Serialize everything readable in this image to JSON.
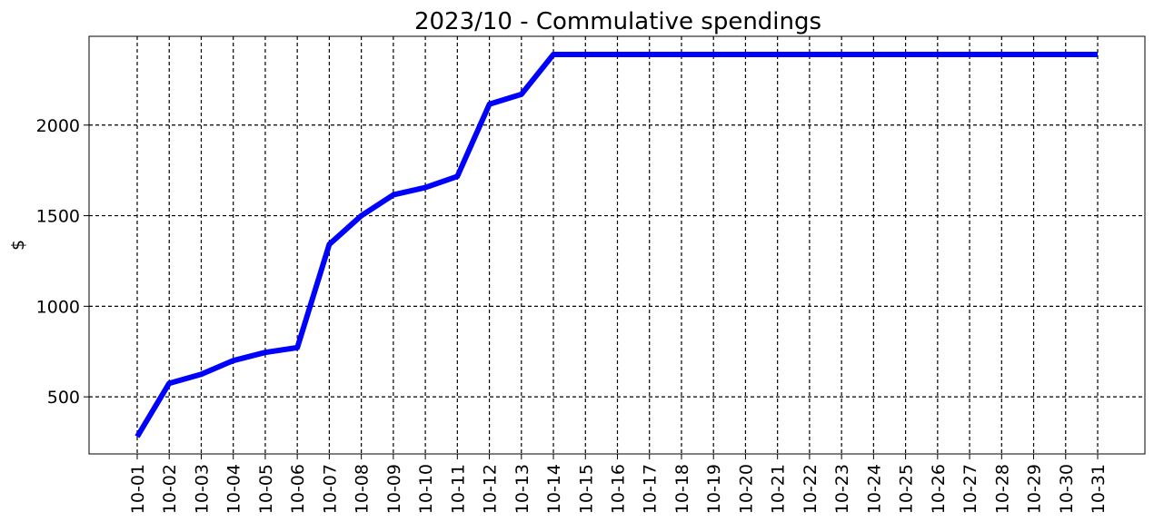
{
  "chart_data": {
    "type": "line",
    "title": "2023/10 - Commulative spendings",
    "xlabel": "",
    "ylabel": "$",
    "categories": [
      "10-01",
      "10-02",
      "10-03",
      "10-04",
      "10-05",
      "10-06",
      "10-07",
      "10-08",
      "10-09",
      "10-10",
      "10-11",
      "10-12",
      "10-13",
      "10-14",
      "10-15",
      "10-16",
      "10-17",
      "10-18",
      "10-19",
      "10-20",
      "10-21",
      "10-22",
      "10-23",
      "10-24",
      "10-25",
      "10-26",
      "10-27",
      "10-28",
      "10-29",
      "10-30",
      "10-31"
    ],
    "yticks": [
      500,
      1000,
      1500,
      2000
    ],
    "ylim": [
      185,
      2490
    ],
    "grid": true,
    "grid_style": "dashed",
    "series": [
      {
        "color": "#0000ff",
        "values": [
          280,
          575,
          625,
          700,
          745,
          772,
          1342,
          1500,
          1615,
          1655,
          1717,
          2115,
          2170,
          2390,
          2390,
          2390,
          2390,
          2390,
          2390,
          2390,
          2390,
          2390,
          2390,
          2390,
          2390,
          2390,
          2390,
          2390,
          2390,
          2390,
          2390
        ]
      }
    ]
  }
}
